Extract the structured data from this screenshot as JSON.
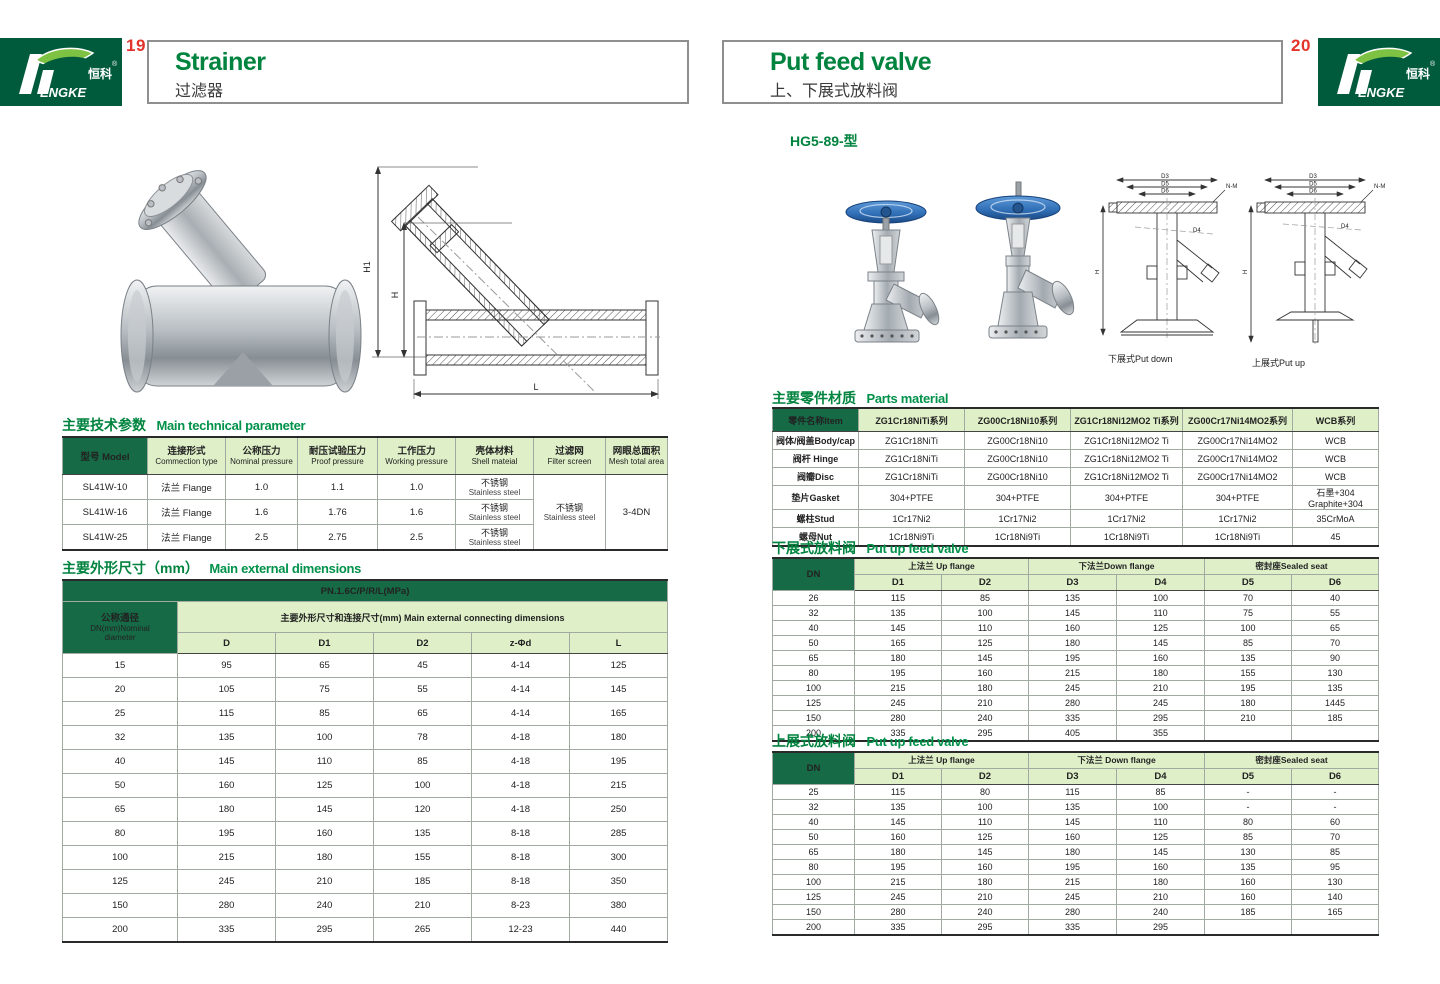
{
  "logo": {
    "zh": "恒科",
    "reg": "®",
    "en": "ENGKE"
  },
  "colors": {
    "dark_green": "#166a45",
    "light_green": "#dfefc8",
    "title_green": "#00833e",
    "page_red": "#e3342b",
    "logo_green": "#005a3c",
    "wheel_blue": "#2f6db5"
  },
  "left": {
    "page_no": "19",
    "title_en": "Strainer",
    "title_zh": "过滤器",
    "drawing_labels": {
      "h1": "H1",
      "h": "H",
      "l": "L"
    },
    "tech": {
      "title_zh": "主要技术参数",
      "title_en": "Main technical parameter",
      "headers": [
        {
          "zh": "型号",
          "en": "Model"
        },
        {
          "zh": "连接形式",
          "en": "Commection type"
        },
        {
          "zh": "公称压力",
          "en": "Nominal pressure"
        },
        {
          "zh": "耐压试验压力",
          "en": "Proof pressure"
        },
        {
          "zh": "工作压力",
          "en": "Working pressure"
        },
        {
          "zh": "壳体材料",
          "en": "Shell mateial"
        },
        {
          "zh": "过滤网",
          "en": "Filter screen"
        },
        {
          "zh": "网眼总面积",
          "en": "Mesh total area"
        }
      ],
      "rows": [
        {
          "model": "SL41W-10",
          "conn": "法兰 Flange",
          "nominal": "1.0",
          "proof": "1.1",
          "working": "1.0",
          "shell_zh": "不锈钢",
          "shell_en": "Stainless steel"
        },
        {
          "model": "SL41W-16",
          "conn": "法兰 Flange",
          "nominal": "1.6",
          "proof": "1.76",
          "working": "1.6",
          "shell_zh": "不锈钢",
          "shell_en": "Stainless steel"
        },
        {
          "model": "SL41W-25",
          "conn": "法兰 Flange",
          "nominal": "2.5",
          "proof": "2.75",
          "working": "2.5",
          "shell_zh": "不锈钢",
          "shell_en": "Stainless steel"
        }
      ],
      "filter_zh": "不锈钢",
      "filter_en": "Stainless steel",
      "mesh_total": "3-4DN"
    },
    "dims": {
      "title_zh": "主要外形尺寸（mm）",
      "title_en": "Main external dimensions",
      "pn_header": "PN.1.6C/P/R/L(MPa)",
      "dn_zh": "公称通径",
      "dn_en1": "DN(mm)Nominal",
      "dn_en2": "diameter",
      "group_header": "主要外形尺寸和连接尺寸(mm) Main external connecting dimensions",
      "cols": [
        "D",
        "D1",
        "D2",
        "z-Φd",
        "L"
      ],
      "rows": [
        [
          "15",
          "95",
          "65",
          "45",
          "4-14",
          "125"
        ],
        [
          "20",
          "105",
          "75",
          "55",
          "4-14",
          "145"
        ],
        [
          "25",
          "115",
          "85",
          "65",
          "4-14",
          "165"
        ],
        [
          "32",
          "135",
          "100",
          "78",
          "4-18",
          "180"
        ],
        [
          "40",
          "145",
          "110",
          "85",
          "4-18",
          "195"
        ],
        [
          "50",
          "160",
          "125",
          "100",
          "4-18",
          "215"
        ],
        [
          "65",
          "180",
          "145",
          "120",
          "4-18",
          "250"
        ],
        [
          "80",
          "195",
          "160",
          "135",
          "8-18",
          "285"
        ],
        [
          "100",
          "215",
          "180",
          "155",
          "8-18",
          "300"
        ],
        [
          "125",
          "245",
          "210",
          "185",
          "8-18",
          "350"
        ],
        [
          "150",
          "280",
          "240",
          "210",
          "8-23",
          "380"
        ],
        [
          "200",
          "335",
          "295",
          "265",
          "12-23",
          "440"
        ]
      ]
    }
  },
  "right": {
    "page_no": "20",
    "title_en": "Put feed valve",
    "title_zh": "上、下展式放料阀",
    "model_code": "HG5-89-型",
    "drawings": {
      "down_caption": "下展式Put down",
      "up_caption": "上展式Put up",
      "labels": {
        "d3": "D3",
        "d4": "D4",
        "d5": "D5",
        "d6": "D6",
        "nm": "N-M",
        "h": "H"
      }
    },
    "parts": {
      "title_zh": "主要零件材质",
      "title_en": "Parts material",
      "headers": [
        "零件名称Item",
        "ZG1Cr18NiTi系列",
        "ZG00Cr18Ni10系列",
        "ZG1Cr18Ni12MO2 Ti系列",
        "ZG00Cr17Ni14MO2系列",
        "WCB系列"
      ],
      "rows": [
        [
          "阀体/阀盖Body/cap",
          "ZG1Cr18NiTi",
          "ZG00Cr18Ni10",
          "ZG1Cr18Ni12MO2 Ti",
          "ZG00Cr17Ni14MO2",
          "WCB"
        ],
        [
          "阀杆 Hinge",
          "ZG1Cr18NiTi",
          "ZG00Cr18Ni10",
          "ZG1Cr18Ni12MO2 Ti",
          "ZG00Cr17Ni14MO2",
          "WCB"
        ],
        [
          "阀瓣Disc",
          "ZG1Cr18NiTi",
          "ZG00Cr18Ni10",
          "ZG1Cr18Ni12MO2 Ti",
          "ZG00Cr17Ni14MO2",
          "WCB"
        ],
        [
          "垫片Gasket",
          "304+PTFE",
          "304+PTFE",
          "304+PTFE",
          "304+PTFE",
          "石墨+304 Graphite+304"
        ],
        [
          "螺柱Stud",
          "1Cr17Ni2",
          "1Cr17Ni2",
          "1Cr17Ni2",
          "1Cr17Ni2",
          "35CrMoA"
        ],
        [
          "螺母Nut",
          "1Cr18Ni9Ti",
          "1Cr18Ni9Ti",
          "1Cr18Ni9Ti",
          "1Cr18Ni9Ti",
          "45"
        ]
      ]
    },
    "down_table": {
      "title_zh": "下展式放料阀",
      "title_en": "Put up feed valve",
      "dn": "DN",
      "up_flange": "上法兰 Up flange",
      "down_flange": "下法兰Down flange",
      "seat": "密封座Sealed seat",
      "cols": [
        "D1",
        "D2",
        "D3",
        "D4",
        "D5",
        "D6"
      ],
      "rows": [
        [
          "26",
          "115",
          "85",
          "135",
          "100",
          "70",
          "40"
        ],
        [
          "32",
          "135",
          "100",
          "145",
          "110",
          "75",
          "55"
        ],
        [
          "40",
          "145",
          "110",
          "160",
          "125",
          "100",
          "65"
        ],
        [
          "50",
          "165",
          "125",
          "180",
          "145",
          "85",
          "70"
        ],
        [
          "65",
          "180",
          "145",
          "195",
          "160",
          "135",
          "90"
        ],
        [
          "80",
          "195",
          "160",
          "215",
          "180",
          "155",
          "130"
        ],
        [
          "100",
          "215",
          "180",
          "245",
          "210",
          "195",
          "135"
        ],
        [
          "125",
          "245",
          "210",
          "280",
          "245",
          "180",
          "1445"
        ],
        [
          "150",
          "280",
          "240",
          "335",
          "295",
          "210",
          "185"
        ],
        [
          "200",
          "335",
          "295",
          "405",
          "355",
          "",
          ""
        ]
      ]
    },
    "up_table": {
      "title_zh": "上展式放料阀",
      "title_en": "Put up feed valve",
      "dn": "DN",
      "up_flange": "上法兰 Up flange",
      "down_flange": "下法兰 Down flange",
      "seat": "密封座Sealed seat",
      "cols": [
        "D1",
        "D2",
        "D3",
        "D4",
        "D5",
        "D6"
      ],
      "rows": [
        [
          "25",
          "115",
          "80",
          "115",
          "85",
          "-",
          "-"
        ],
        [
          "32",
          "135",
          "100",
          "135",
          "100",
          "-",
          "-"
        ],
        [
          "40",
          "145",
          "110",
          "145",
          "110",
          "80",
          "60"
        ],
        [
          "50",
          "160",
          "125",
          "160",
          "125",
          "85",
          "70"
        ],
        [
          "65",
          "180",
          "145",
          "180",
          "145",
          "130",
          "85"
        ],
        [
          "80",
          "195",
          "160",
          "195",
          "160",
          "135",
          "95"
        ],
        [
          "100",
          "215",
          "180",
          "215",
          "180",
          "160",
          "130"
        ],
        [
          "125",
          "245",
          "210",
          "245",
          "210",
          "160",
          "140"
        ],
        [
          "150",
          "280",
          "240",
          "280",
          "240",
          "185",
          "165"
        ],
        [
          "200",
          "335",
          "295",
          "335",
          "295",
          "",
          ""
        ]
      ]
    }
  }
}
